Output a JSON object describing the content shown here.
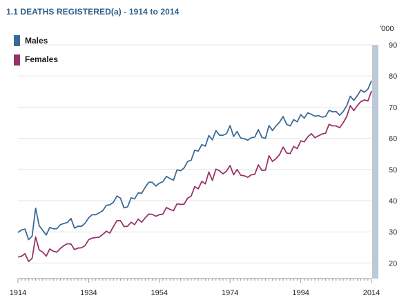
{
  "chart_data": {
    "type": "line",
    "title": "1.1 DEATHS REGISTERED(a) - 1914 to 2014",
    "unit_label": "'000",
    "x_ticks": [
      "1914",
      "1934",
      "1954",
      "1974",
      "1994",
      "2014"
    ],
    "y_ticks": [
      "20",
      "30",
      "40",
      "50",
      "60",
      "70",
      "80",
      "90"
    ],
    "ylim": [
      15,
      90
    ],
    "xlim": [
      1914,
      2014
    ],
    "legend_position": "top-left",
    "colors": {
      "Males": "#3a6a96",
      "Females": "#993366",
      "axis_bar": "#bccad8"
    },
    "series": [
      {
        "name": "Males",
        "x": [
          1914,
          1915,
          1916,
          1917,
          1918,
          1919,
          1920,
          1921,
          1922,
          1923,
          1924,
          1925,
          1926,
          1927,
          1928,
          1929,
          1930,
          1931,
          1932,
          1933,
          1934,
          1935,
          1936,
          1937,
          1938,
          1939,
          1940,
          1941,
          1942,
          1943,
          1944,
          1945,
          1946,
          1947,
          1948,
          1949,
          1950,
          1951,
          1952,
          1953,
          1954,
          1955,
          1956,
          1957,
          1958,
          1959,
          1960,
          1961,
          1962,
          1963,
          1964,
          1965,
          1966,
          1967,
          1968,
          1969,
          1970,
          1971,
          1972,
          1973,
          1974,
          1975,
          1976,
          1977,
          1978,
          1979,
          1980,
          1981,
          1982,
          1983,
          1984,
          1985,
          1986,
          1987,
          1988,
          1989,
          1990,
          1991,
          1992,
          1993,
          1994,
          1995,
          1996,
          1997,
          1998,
          1999,
          2000,
          2001,
          2002,
          2003,
          2004,
          2005,
          2006,
          2007,
          2008,
          2009,
          2010,
          2011,
          2012,
          2013,
          2014
        ],
        "values": [
          29.8,
          30.6,
          30.9,
          27.5,
          28.6,
          37.6,
          32.0,
          30.5,
          29.0,
          31.4,
          31.0,
          31.0,
          32.3,
          32.7,
          33.0,
          34.3,
          31.2,
          31.8,
          31.8,
          32.8,
          34.5,
          35.5,
          35.5,
          36.1,
          36.8,
          38.5,
          38.7,
          39.5,
          41.5,
          40.8,
          37.7,
          38.0,
          40.9,
          40.6,
          42.5,
          42.4,
          44.3,
          45.9,
          45.9,
          44.7,
          45.6,
          46.1,
          47.8,
          47.1,
          46.6,
          49.9,
          49.6,
          50.5,
          52.6,
          53.0,
          56.2,
          55.9,
          58.0,
          57.5,
          60.9,
          59.5,
          62.5,
          61.0,
          61.0,
          61.5,
          64.1,
          60.6,
          62.2,
          60.1,
          59.9,
          59.4,
          60.2,
          60.4,
          62.8,
          60.3,
          60.0,
          64.1,
          62.5,
          64.0,
          65.2,
          67.0,
          64.5,
          64.0,
          66.0,
          65.3,
          67.6,
          66.5,
          68.2,
          67.7,
          67.1,
          67.3,
          66.8,
          67.0,
          69.0,
          68.5,
          68.6,
          67.4,
          68.6,
          70.5,
          73.5,
          72.2,
          73.7,
          75.5,
          74.8,
          75.8,
          78.5
        ]
      },
      {
        "name": "Females",
        "x": [
          1914,
          1915,
          1916,
          1917,
          1918,
          1919,
          1920,
          1921,
          1922,
          1923,
          1924,
          1925,
          1926,
          1927,
          1928,
          1929,
          1930,
          1931,
          1932,
          1933,
          1934,
          1935,
          1936,
          1937,
          1938,
          1939,
          1940,
          1941,
          1942,
          1943,
          1944,
          1945,
          1946,
          1947,
          1948,
          1949,
          1950,
          1951,
          1952,
          1953,
          1954,
          1955,
          1956,
          1957,
          1958,
          1959,
          1960,
          1961,
          1962,
          1963,
          1964,
          1965,
          1966,
          1967,
          1968,
          1969,
          1970,
          1971,
          1972,
          1973,
          1974,
          1975,
          1976,
          1977,
          1978,
          1979,
          1980,
          1981,
          1982,
          1983,
          1984,
          1985,
          1986,
          1987,
          1988,
          1989,
          1990,
          1991,
          1992,
          1993,
          1994,
          1995,
          1996,
          1997,
          1998,
          1999,
          2000,
          2001,
          2002,
          2003,
          2004,
          2005,
          2006,
          2007,
          2008,
          2009,
          2010,
          2011,
          2012,
          2013,
          2014
        ],
        "values": [
          21.9,
          22.2,
          23.0,
          20.5,
          21.5,
          28.4,
          24.2,
          23.5,
          22.2,
          24.5,
          23.8,
          23.5,
          24.7,
          25.6,
          26.2,
          26.1,
          24.3,
          24.8,
          24.9,
          25.6,
          27.5,
          28.0,
          28.2,
          28.3,
          29.2,
          30.2,
          29.6,
          31.7,
          33.6,
          33.6,
          31.7,
          31.8,
          33.1,
          32.3,
          34.1,
          33.1,
          34.5,
          35.7,
          35.6,
          35.0,
          35.5,
          35.7,
          37.8,
          37.2,
          36.8,
          39.0,
          38.8,
          38.9,
          40.8,
          41.5,
          44.5,
          43.8,
          46.2,
          45.4,
          49.2,
          46.5,
          50.1,
          49.6,
          48.6,
          49.5,
          51.3,
          48.3,
          50.0,
          48.2,
          48.0,
          47.5,
          48.3,
          48.5,
          51.5,
          49.7,
          49.8,
          54.4,
          52.6,
          53.5,
          54.8,
          57.2,
          55.3,
          55.1,
          57.4,
          56.7,
          59.2,
          58.9,
          60.5,
          61.5,
          60.2,
          60.8,
          61.4,
          61.6,
          64.5,
          64.0,
          64.0,
          63.4,
          65.0,
          67.0,
          70.5,
          68.9,
          70.5,
          71.8,
          72.3,
          72.0,
          75.2
        ]
      }
    ]
  }
}
